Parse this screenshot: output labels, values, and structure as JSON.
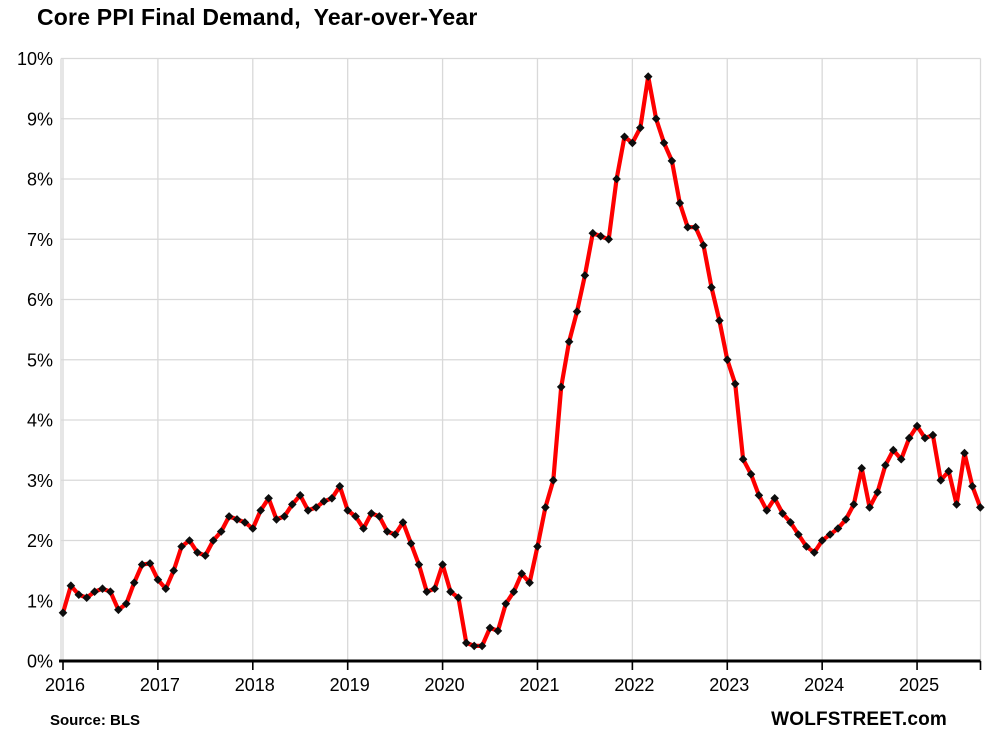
{
  "title": "Core PPI Final Demand,  Year-over-Year",
  "source_note": "Source: BLS",
  "watermark": "WOLFSTREET.com",
  "y_axis": {
    "labels": [
      "0%",
      "1%",
      "2%",
      "3%",
      "4%",
      "5%",
      "6%",
      "7%",
      "8%",
      "9%",
      "10%"
    ],
    "min": 0,
    "max": 10
  },
  "x_axis": {
    "years": [
      "2016",
      "2017",
      "2018",
      "2019",
      "2020",
      "2021",
      "2022",
      "2023",
      "2024",
      "2025"
    ]
  },
  "style": {
    "line_color": "#fe0000",
    "marker_color": "#0d0d0d",
    "grid_color": "#d9d9d9",
    "axis_color": "#000000",
    "background": "#ffffff"
  },
  "chart_data": {
    "type": "line",
    "title": "Core PPI Final Demand, Year-over-Year",
    "xlabel": "",
    "ylabel": "",
    "ylim": [
      0,
      10
    ],
    "grid": true,
    "legend_position": "none",
    "series_name": "Core PPI Final Demand YoY %",
    "x": [
      "2016-01",
      "2016-02",
      "2016-03",
      "2016-04",
      "2016-05",
      "2016-06",
      "2016-07",
      "2016-08",
      "2016-09",
      "2016-10",
      "2016-11",
      "2016-12",
      "2017-01",
      "2017-02",
      "2017-03",
      "2017-04",
      "2017-05",
      "2017-06",
      "2017-07",
      "2017-08",
      "2017-09",
      "2017-10",
      "2017-11",
      "2017-12",
      "2018-01",
      "2018-02",
      "2018-03",
      "2018-04",
      "2018-05",
      "2018-06",
      "2018-07",
      "2018-08",
      "2018-09",
      "2018-10",
      "2018-11",
      "2018-12",
      "2019-01",
      "2019-02",
      "2019-03",
      "2019-04",
      "2019-05",
      "2019-06",
      "2019-07",
      "2019-08",
      "2019-09",
      "2019-10",
      "2019-11",
      "2019-12",
      "2020-01",
      "2020-02",
      "2020-03",
      "2020-04",
      "2020-05",
      "2020-06",
      "2020-07",
      "2020-08",
      "2020-09",
      "2020-10",
      "2020-11",
      "2020-12",
      "2021-01",
      "2021-02",
      "2021-03",
      "2021-04",
      "2021-05",
      "2021-06",
      "2021-07",
      "2021-08",
      "2021-09",
      "2021-10",
      "2021-11",
      "2021-12",
      "2022-01",
      "2022-02",
      "2022-03",
      "2022-04",
      "2022-05",
      "2022-06",
      "2022-07",
      "2022-08",
      "2022-09",
      "2022-10",
      "2022-11",
      "2022-12",
      "2023-01",
      "2023-02",
      "2023-03",
      "2023-04",
      "2023-05",
      "2023-06",
      "2023-07",
      "2023-08",
      "2023-09",
      "2023-10",
      "2023-11",
      "2023-12",
      "2024-01",
      "2024-02",
      "2024-03",
      "2024-04",
      "2024-05",
      "2024-06",
      "2024-07",
      "2024-08",
      "2024-09",
      "2024-10",
      "2024-11",
      "2024-12",
      "2025-01",
      "2025-02",
      "2025-03",
      "2025-04",
      "2025-05",
      "2025-06",
      "2025-07",
      "2025-08",
      "2025-09"
    ],
    "values": [
      0.8,
      1.25,
      1.1,
      1.05,
      1.15,
      1.2,
      1.15,
      0.85,
      0.95,
      1.3,
      1.6,
      1.62,
      1.35,
      1.2,
      1.5,
      1.9,
      2.0,
      1.8,
      1.75,
      2.0,
      2.15,
      2.4,
      2.35,
      2.3,
      2.2,
      2.5,
      2.7,
      2.35,
      2.4,
      2.6,
      2.75,
      2.5,
      2.55,
      2.65,
      2.7,
      2.9,
      2.5,
      2.4,
      2.2,
      2.45,
      2.4,
      2.15,
      2.1,
      2.3,
      1.95,
      1.6,
      1.15,
      1.2,
      1.6,
      1.15,
      1.05,
      0.3,
      0.25,
      0.25,
      0.55,
      0.5,
      0.95,
      1.15,
      1.45,
      1.3,
      1.9,
      2.55,
      3.0,
      4.55,
      5.3,
      5.8,
      6.4,
      7.1,
      7.05,
      7.0,
      8.0,
      8.7,
      8.6,
      8.85,
      9.7,
      9.0,
      8.6,
      8.3,
      7.6,
      7.2,
      7.2,
      6.9,
      6.2,
      5.65,
      5.0,
      4.6,
      3.35,
      3.1,
      2.75,
      2.5,
      2.7,
      2.45,
      2.3,
      2.1,
      1.9,
      1.8,
      2.0,
      2.1,
      2.2,
      2.35,
      2.6,
      3.2,
      2.55,
      2.8,
      3.25,
      3.5,
      3.35,
      3.7,
      3.9,
      3.7,
      3.75,
      3.0,
      3.15,
      2.6,
      3.45,
      2.9,
      2.55
    ]
  }
}
